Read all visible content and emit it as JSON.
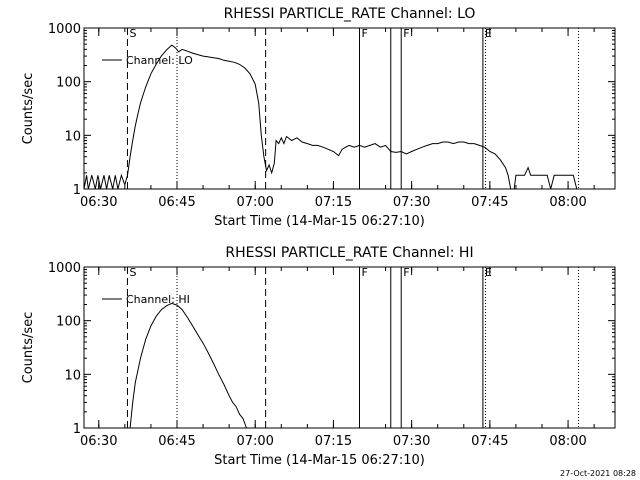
{
  "footer": {
    "date": "27-Oct-2021 08:28"
  },
  "chart_data": [
    {
      "type": "line",
      "title": "RHESSI PARTICLE_RATE Channel: LO",
      "xlabel": "Start Time (14-Mar-15 06:27:10)",
      "ylabel": "Counts/sec",
      "yscale": "log",
      "ylim": [
        1,
        1000
      ],
      "y_ticks": [
        {
          "v": 1,
          "label": "1"
        },
        {
          "v": 10,
          "label": "10"
        },
        {
          "v": 100,
          "label": "100"
        },
        {
          "v": 1000,
          "label": "1000"
        }
      ],
      "xlim": [
        "06:27:10",
        "08:09:00"
      ],
      "x_ticks": [
        {
          "t": "06:30",
          "label": "06:30"
        },
        {
          "t": "06:45",
          "label": "06:45"
        },
        {
          "t": "07:00",
          "label": "07:00"
        },
        {
          "t": "07:15",
          "label": "07:15"
        },
        {
          "t": "07:30",
          "label": "07:30"
        },
        {
          "t": "07:45",
          "label": "07:45"
        },
        {
          "t": "08:00",
          "label": "08:00"
        }
      ],
      "legend": {
        "label": "Channel: LO",
        "position": "top-left"
      },
      "markers": [
        {
          "t": "06:35:30",
          "style": "dashed",
          "label": "S"
        },
        {
          "t": "07:02:00",
          "style": "dashed",
          "label": ""
        },
        {
          "t": "06:45:00",
          "style": "dotted",
          "label": ""
        },
        {
          "t": "08:02:00",
          "style": "dotted",
          "label": ""
        },
        {
          "t": "07:20:00",
          "style": "solid",
          "label": "F"
        },
        {
          "t": "07:26:00",
          "style": "solid",
          "label": ""
        },
        {
          "t": "07:28:00",
          "style": "solid",
          "label": "F"
        },
        {
          "t": "07:43:40",
          "style": "solid",
          "label": "E"
        },
        {
          "t": "07:44:10",
          "style": "dotted",
          "label": ""
        }
      ],
      "series": [
        {
          "name": "Channel: LO",
          "points": [
            [
              "06:27:10",
              1
            ],
            [
              "06:27:40",
              1.8
            ],
            [
              "06:28:00",
              1
            ],
            [
              "06:28:40",
              1.8
            ],
            [
              "06:29:20",
              1
            ],
            [
              "06:29:50",
              1.8
            ],
            [
              "06:30:20",
              1
            ],
            [
              "06:31:00",
              1.8
            ],
            [
              "06:31:30",
              1
            ],
            [
              "06:32:00",
              1.8
            ],
            [
              "06:32:40",
              1
            ],
            [
              "06:33:10",
              1.8
            ],
            [
              "06:33:40",
              1
            ],
            [
              "06:34:20",
              1.8
            ],
            [
              "06:35:00",
              1.2
            ],
            [
              "06:35:30",
              1.8
            ],
            [
              "06:36:00",
              4
            ],
            [
              "06:36:30",
              8
            ],
            [
              "06:37:00",
              15
            ],
            [
              "06:37:30",
              25
            ],
            [
              "06:38:00",
              40
            ],
            [
              "06:39:00",
              80
            ],
            [
              "06:40:00",
              140
            ],
            [
              "06:41:00",
              210
            ],
            [
              "06:42:00",
              300
            ],
            [
              "06:43:00",
              390
            ],
            [
              "06:44:00",
              480
            ],
            [
              "06:44:40",
              430
            ],
            [
              "06:45:20",
              360
            ],
            [
              "06:46:00",
              400
            ],
            [
              "06:47:00",
              370
            ],
            [
              "06:48:00",
              340
            ],
            [
              "06:49:00",
              320
            ],
            [
              "06:50:00",
              300
            ],
            [
              "06:51:00",
              290
            ],
            [
              "06:52:00",
              280
            ],
            [
              "06:53:00",
              270
            ],
            [
              "06:54:00",
              250
            ],
            [
              "06:55:00",
              240
            ],
            [
              "06:56:00",
              230
            ],
            [
              "06:57:00",
              210
            ],
            [
              "06:58:00",
              180
            ],
            [
              "06:59:00",
              140
            ],
            [
              "07:00:00",
              90
            ],
            [
              "07:00:40",
              40
            ],
            [
              "07:01:10",
              10
            ],
            [
              "07:01:40",
              4
            ],
            [
              "07:02:10",
              2.2
            ],
            [
              "07:02:40",
              2.8
            ],
            [
              "07:03:10",
              2
            ],
            [
              "07:03:40",
              3
            ],
            [
              "07:04:00",
              8
            ],
            [
              "07:04:30",
              7
            ],
            [
              "07:05:00",
              9
            ],
            [
              "07:05:30",
              7
            ],
            [
              "07:06:00",
              9.5
            ],
            [
              "07:07:00",
              8
            ],
            [
              "07:08:00",
              9
            ],
            [
              "07:09:00",
              7.5
            ],
            [
              "07:10:00",
              7
            ],
            [
              "07:11:00",
              6.5
            ],
            [
              "07:12:00",
              6.5
            ],
            [
              "07:13:00",
              6
            ],
            [
              "07:14:00",
              5.5
            ],
            [
              "07:15:00",
              5
            ],
            [
              "07:16:00",
              4.2
            ],
            [
              "07:16:40",
              5.5
            ],
            [
              "07:17:20",
              6
            ],
            [
              "07:18:00",
              6.5
            ],
            [
              "07:19:00",
              6
            ],
            [
              "07:20:00",
              6.5
            ],
            [
              "07:21:00",
              6
            ],
            [
              "07:22:00",
              6.5
            ],
            [
              "07:23:00",
              7
            ],
            [
              "07:24:00",
              6
            ],
            [
              "07:25:00",
              6.5
            ],
            [
              "07:26:00",
              5
            ],
            [
              "07:27:00",
              4.8
            ],
            [
              "07:28:00",
              5
            ],
            [
              "07:29:00",
              4.5
            ],
            [
              "07:30:00",
              5
            ],
            [
              "07:31:00",
              5.5
            ],
            [
              "07:32:00",
              6
            ],
            [
              "07:33:00",
              6.5
            ],
            [
              "07:34:00",
              7
            ],
            [
              "07:35:00",
              7
            ],
            [
              "07:36:00",
              7.5
            ],
            [
              "07:37:00",
              7.5
            ],
            [
              "07:38:00",
              7
            ],
            [
              "07:39:00",
              7.5
            ],
            [
              "07:40:00",
              7.5
            ],
            [
              "07:41:00",
              7
            ],
            [
              "07:42:00",
              7
            ],
            [
              "07:43:00",
              6.5
            ],
            [
              "07:44:00",
              6
            ],
            [
              "07:45:00",
              5
            ],
            [
              "07:46:00",
              4.5
            ],
            [
              "07:47:00",
              3.5
            ],
            [
              "07:48:00",
              2.5
            ],
            [
              "07:48:30",
              1.8
            ],
            [
              "07:49:00",
              1
            ],
            [
              "07:49:40",
              1
            ],
            [
              "07:50:00",
              1.8
            ],
            [
              "07:51:00",
              1.8
            ],
            [
              "07:51:40",
              1.8
            ],
            [
              "07:52:20",
              2.5
            ],
            [
              "07:52:50",
              1.8
            ],
            [
              "07:54:00",
              1.8
            ],
            [
              "07:55:00",
              1.8
            ],
            [
              "07:56:00",
              1.8
            ],
            [
              "07:56:40",
              1
            ],
            [
              "07:57:20",
              1.8
            ],
            [
              "07:58:00",
              1.8
            ],
            [
              "07:59:00",
              1.8
            ],
            [
              "08:00:00",
              1.8
            ],
            [
              "08:01:00",
              1.8
            ],
            [
              "08:01:40",
              1
            ]
          ]
        }
      ]
    },
    {
      "type": "line",
      "title": "RHESSI PARTICLE_RATE Channel: HI",
      "xlabel": "Start Time (14-Mar-15 06:27:10)",
      "ylabel": "Counts/sec",
      "yscale": "log",
      "ylim": [
        1,
        1000
      ],
      "y_ticks": [
        {
          "v": 1,
          "label": "1"
        },
        {
          "v": 10,
          "label": "10"
        },
        {
          "v": 100,
          "label": "100"
        },
        {
          "v": 1000,
          "label": "1000"
        }
      ],
      "xlim": [
        "06:27:10",
        "08:09:00"
      ],
      "x_ticks": [
        {
          "t": "06:30",
          "label": "06:30"
        },
        {
          "t": "06:45",
          "label": "06:45"
        },
        {
          "t": "07:00",
          "label": "07:00"
        },
        {
          "t": "07:15",
          "label": "07:15"
        },
        {
          "t": "07:30",
          "label": "07:30"
        },
        {
          "t": "07:45",
          "label": "07:45"
        },
        {
          "t": "08:00",
          "label": "08:00"
        }
      ],
      "legend": {
        "label": "Channel: HI",
        "position": "top-left"
      },
      "markers": [
        {
          "t": "06:35:30",
          "style": "dashed",
          "label": "S"
        },
        {
          "t": "07:02:00",
          "style": "dashed",
          "label": ""
        },
        {
          "t": "06:45:00",
          "style": "dotted",
          "label": ""
        },
        {
          "t": "08:02:00",
          "style": "dotted",
          "label": ""
        },
        {
          "t": "07:20:00",
          "style": "solid",
          "label": "F"
        },
        {
          "t": "07:26:00",
          "style": "solid",
          "label": ""
        },
        {
          "t": "07:28:00",
          "style": "solid",
          "label": "F"
        },
        {
          "t": "07:43:40",
          "style": "solid",
          "label": "E"
        },
        {
          "t": "07:44:10",
          "style": "dotted",
          "label": ""
        }
      ],
      "series": [
        {
          "name": "Channel: HI",
          "points": [
            [
              "06:36:00",
              1
            ],
            [
              "06:36:30",
              3
            ],
            [
              "06:37:00",
              7
            ],
            [
              "06:38:00",
              20
            ],
            [
              "06:39:00",
              45
            ],
            [
              "06:40:00",
              80
            ],
            [
              "06:41:00",
              120
            ],
            [
              "06:42:00",
              160
            ],
            [
              "06:43:00",
              190
            ],
            [
              "06:44:00",
              210
            ],
            [
              "06:45:00",
              195
            ],
            [
              "06:46:00",
              160
            ],
            [
              "06:47:00",
              115
            ],
            [
              "06:48:00",
              80
            ],
            [
              "06:49:00",
              55
            ],
            [
              "06:50:00",
              38
            ],
            [
              "06:51:00",
              25
            ],
            [
              "06:52:00",
              16
            ],
            [
              "06:53:00",
              10
            ],
            [
              "06:54:00",
              6.5
            ],
            [
              "06:55:00",
              4
            ],
            [
              "06:55:40",
              3
            ],
            [
              "06:56:20",
              2.5
            ],
            [
              "06:57:00",
              1.8
            ],
            [
              "06:57:40",
              1.5
            ],
            [
              "06:58:20",
              1
            ]
          ]
        }
      ]
    }
  ]
}
